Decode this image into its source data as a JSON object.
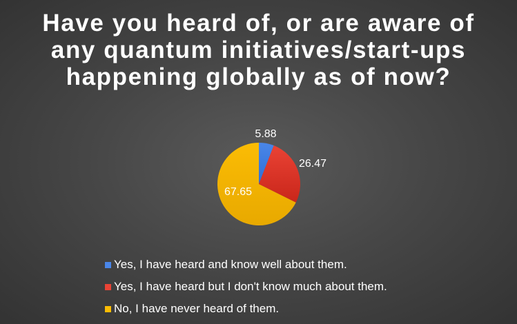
{
  "chart_data": {
    "type": "pie",
    "title": "Have you heard of, or are aware of any quantum initiatives/start-ups happening globally as of now?",
    "categories": [
      "Yes, I have heard and know well about them.",
      "Yes, I have heard but I don't know much about them.",
      "No, I have never heard of them."
    ],
    "values": [
      5.88,
      26.47,
      67.65
    ],
    "data_labels": [
      "5.88",
      "26.47",
      "67.65"
    ],
    "colors": [
      "#4a86e8",
      "#ea4335",
      "#fbbc04"
    ],
    "legend_position": "bottom"
  }
}
